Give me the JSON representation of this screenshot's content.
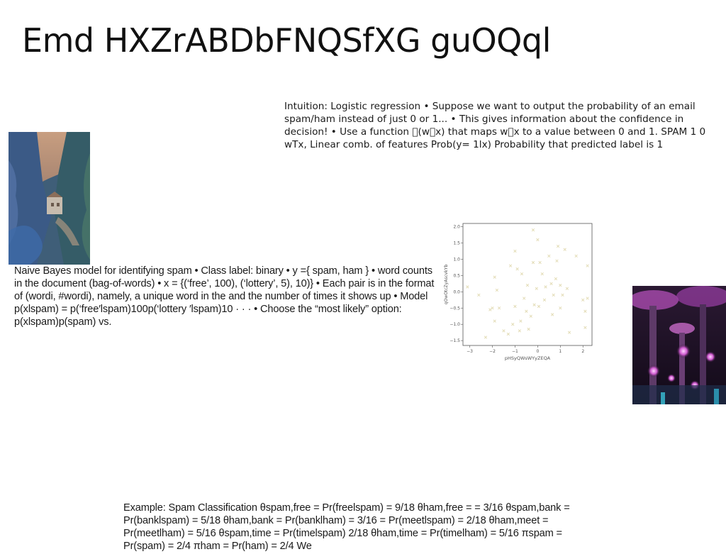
{
  "slide": {
    "title": "Emd HXZrABDbFNQSfXG guOQql",
    "intuition_text": "Intuition: Logistic regression • Suppose we want to output the probability of an email spam/ham instead of just 0 or 1... • This gives information about the confidence in decision! • Use a function \u0000(w\u0000x) that maps w\u0000x to a value between 0 and 1. SPAM 1 0 wTx, Linear comb. of features Prob(y= 1lx) Probability that predicted label is 1",
    "naive_bayes_text": "Naive Bayes model for identifying spam • Class label: binary • y ={ spam, ham } • word counts in the document (bag-of-words) • x = {(‘free’, 100), (‘lottery’, 5), 10)} • Each pair is in the format of (wordi, #wordi), namely, a unique word in the and the number of times it shows up • Model p(xlspam) = p(‘free′lspam)100p(‘lottery ′lspam)10 · · · • Choose the “most likely” option: p(xlspam)p(spam) vs.",
    "example_text": "Example: Spam Classification θspam,free = Pr(freelspam) = 9/18 θham,free = = 3/16 θspam,bank = Pr(banklspam) = 5/18 θham,bank = Pr(banklham) = 3/16 = Pr(meetlspam) = 2/18 θham,meet = Pr(meetlham) = 5/16 θspam,time = Pr(timelspam) 2/18 θham,time = Pr(timelham) = 5/16 πspam = Pr(spam) = 2/4 πham = Pr(ham) = 2/4 We"
  },
  "chart_data": {
    "type": "scatter",
    "xlabel": "pHSyQWsWYyZEQA",
    "ylabel": "qOwOtcZyAscvkYb",
    "xlim": [
      -3.3,
      2.4
    ],
    "ylim": [
      -1.65,
      2.1
    ],
    "xticks": [
      "−3",
      "−2",
      "−1",
      "0",
      "1",
      "2"
    ],
    "yticks": [
      "−1.5",
      "−1.0",
      "−0.5",
      "0.0",
      "0.5",
      "1.0",
      "1.5",
      "2.0"
    ],
    "marker_color": "#e3dcb6",
    "points": [
      [
        -3.1,
        0.15
      ],
      [
        -2.6,
        -0.1
      ],
      [
        -2.3,
        -1.4
      ],
      [
        -2.1,
        -0.55
      ],
      [
        -2.0,
        -0.5
      ],
      [
        -1.9,
        -0.9
      ],
      [
        -1.9,
        0.45
      ],
      [
        -1.8,
        0.05
      ],
      [
        -1.7,
        -0.5
      ],
      [
        -1.5,
        -1.2
      ],
      [
        -1.3,
        -1.3
      ],
      [
        -1.2,
        0.8
      ],
      [
        -1.1,
        -1.0
      ],
      [
        -1.0,
        1.25
      ],
      [
        -1.0,
        -0.45
      ],
      [
        -0.9,
        0.7
      ],
      [
        -0.8,
        -1.2
      ],
      [
        -0.75,
        -0.9
      ],
      [
        -0.7,
        0.55
      ],
      [
        -0.6,
        -0.2
      ],
      [
        -0.5,
        -0.6
      ],
      [
        -0.45,
        0.2
      ],
      [
        -0.4,
        -1.15
      ],
      [
        -0.3,
        -0.75
      ],
      [
        -0.2,
        0.9
      ],
      [
        -0.2,
        1.9
      ],
      [
        -0.15,
        -0.4
      ],
      [
        -0.05,
        0.1
      ],
      [
        0.0,
        1.6
      ],
      [
        0.05,
        -0.45
      ],
      [
        0.1,
        0.9
      ],
      [
        0.2,
        0.55
      ],
      [
        0.3,
        -0.25
      ],
      [
        0.35,
        0.15
      ],
      [
        0.5,
        1.1
      ],
      [
        0.6,
        0.25
      ],
      [
        0.65,
        -0.7
      ],
      [
        0.7,
        -0.1
      ],
      [
        0.8,
        0.4
      ],
      [
        0.85,
        0.95
      ],
      [
        1.0,
        0.2
      ],
      [
        1.0,
        -0.5
      ],
      [
        1.1,
        -0.1
      ],
      [
        1.2,
        1.3
      ],
      [
        1.3,
        0.1
      ],
      [
        1.4,
        -1.25
      ],
      [
        2.0,
        -0.25
      ],
      [
        2.1,
        -0.6
      ],
      [
        2.1,
        -1.1
      ],
      [
        2.2,
        -0.2
      ],
      [
        2.2,
        0.8
      ],
      [
        1.7,
        1.1
      ],
      [
        0.9,
        1.4
      ]
    ]
  },
  "images": {
    "canyon": "canyon-photo",
    "trees": "supertree-grove-photo"
  }
}
